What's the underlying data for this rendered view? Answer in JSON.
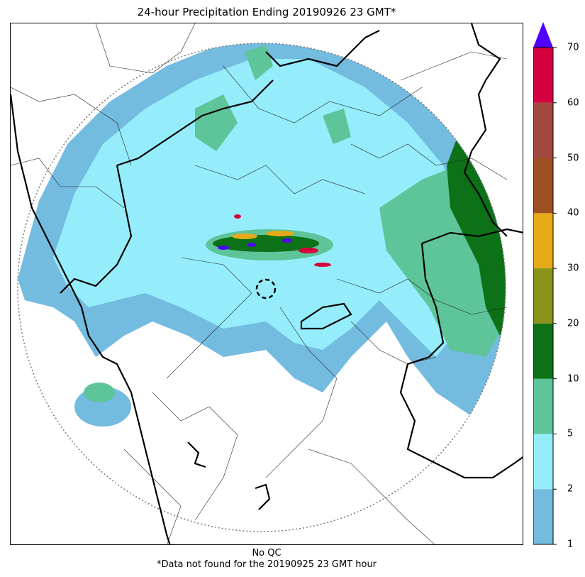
{
  "title": "24-hour Precipitation Ending 20190926 23 GMT*",
  "footer": {
    "qc_label": "No QC",
    "note": "*Data not found for the 20190925 23 GMT hour"
  },
  "colorbar": {
    "levels": [
      "1",
      "2",
      "5",
      "10",
      "20",
      "30",
      "40",
      "50",
      "60",
      "70"
    ],
    "colors": [
      "#74bbe0",
      "#95edfb",
      "#5ec49a",
      "#0d7118",
      "#8a9219",
      "#e6a919",
      "#9e4f24",
      "#a3483f",
      "#d4003f"
    ],
    "extend_color": "#5000ff"
  },
  "map": {
    "radar_range_ring": "dotted",
    "radar_site_marker": "dashed-circle"
  }
}
